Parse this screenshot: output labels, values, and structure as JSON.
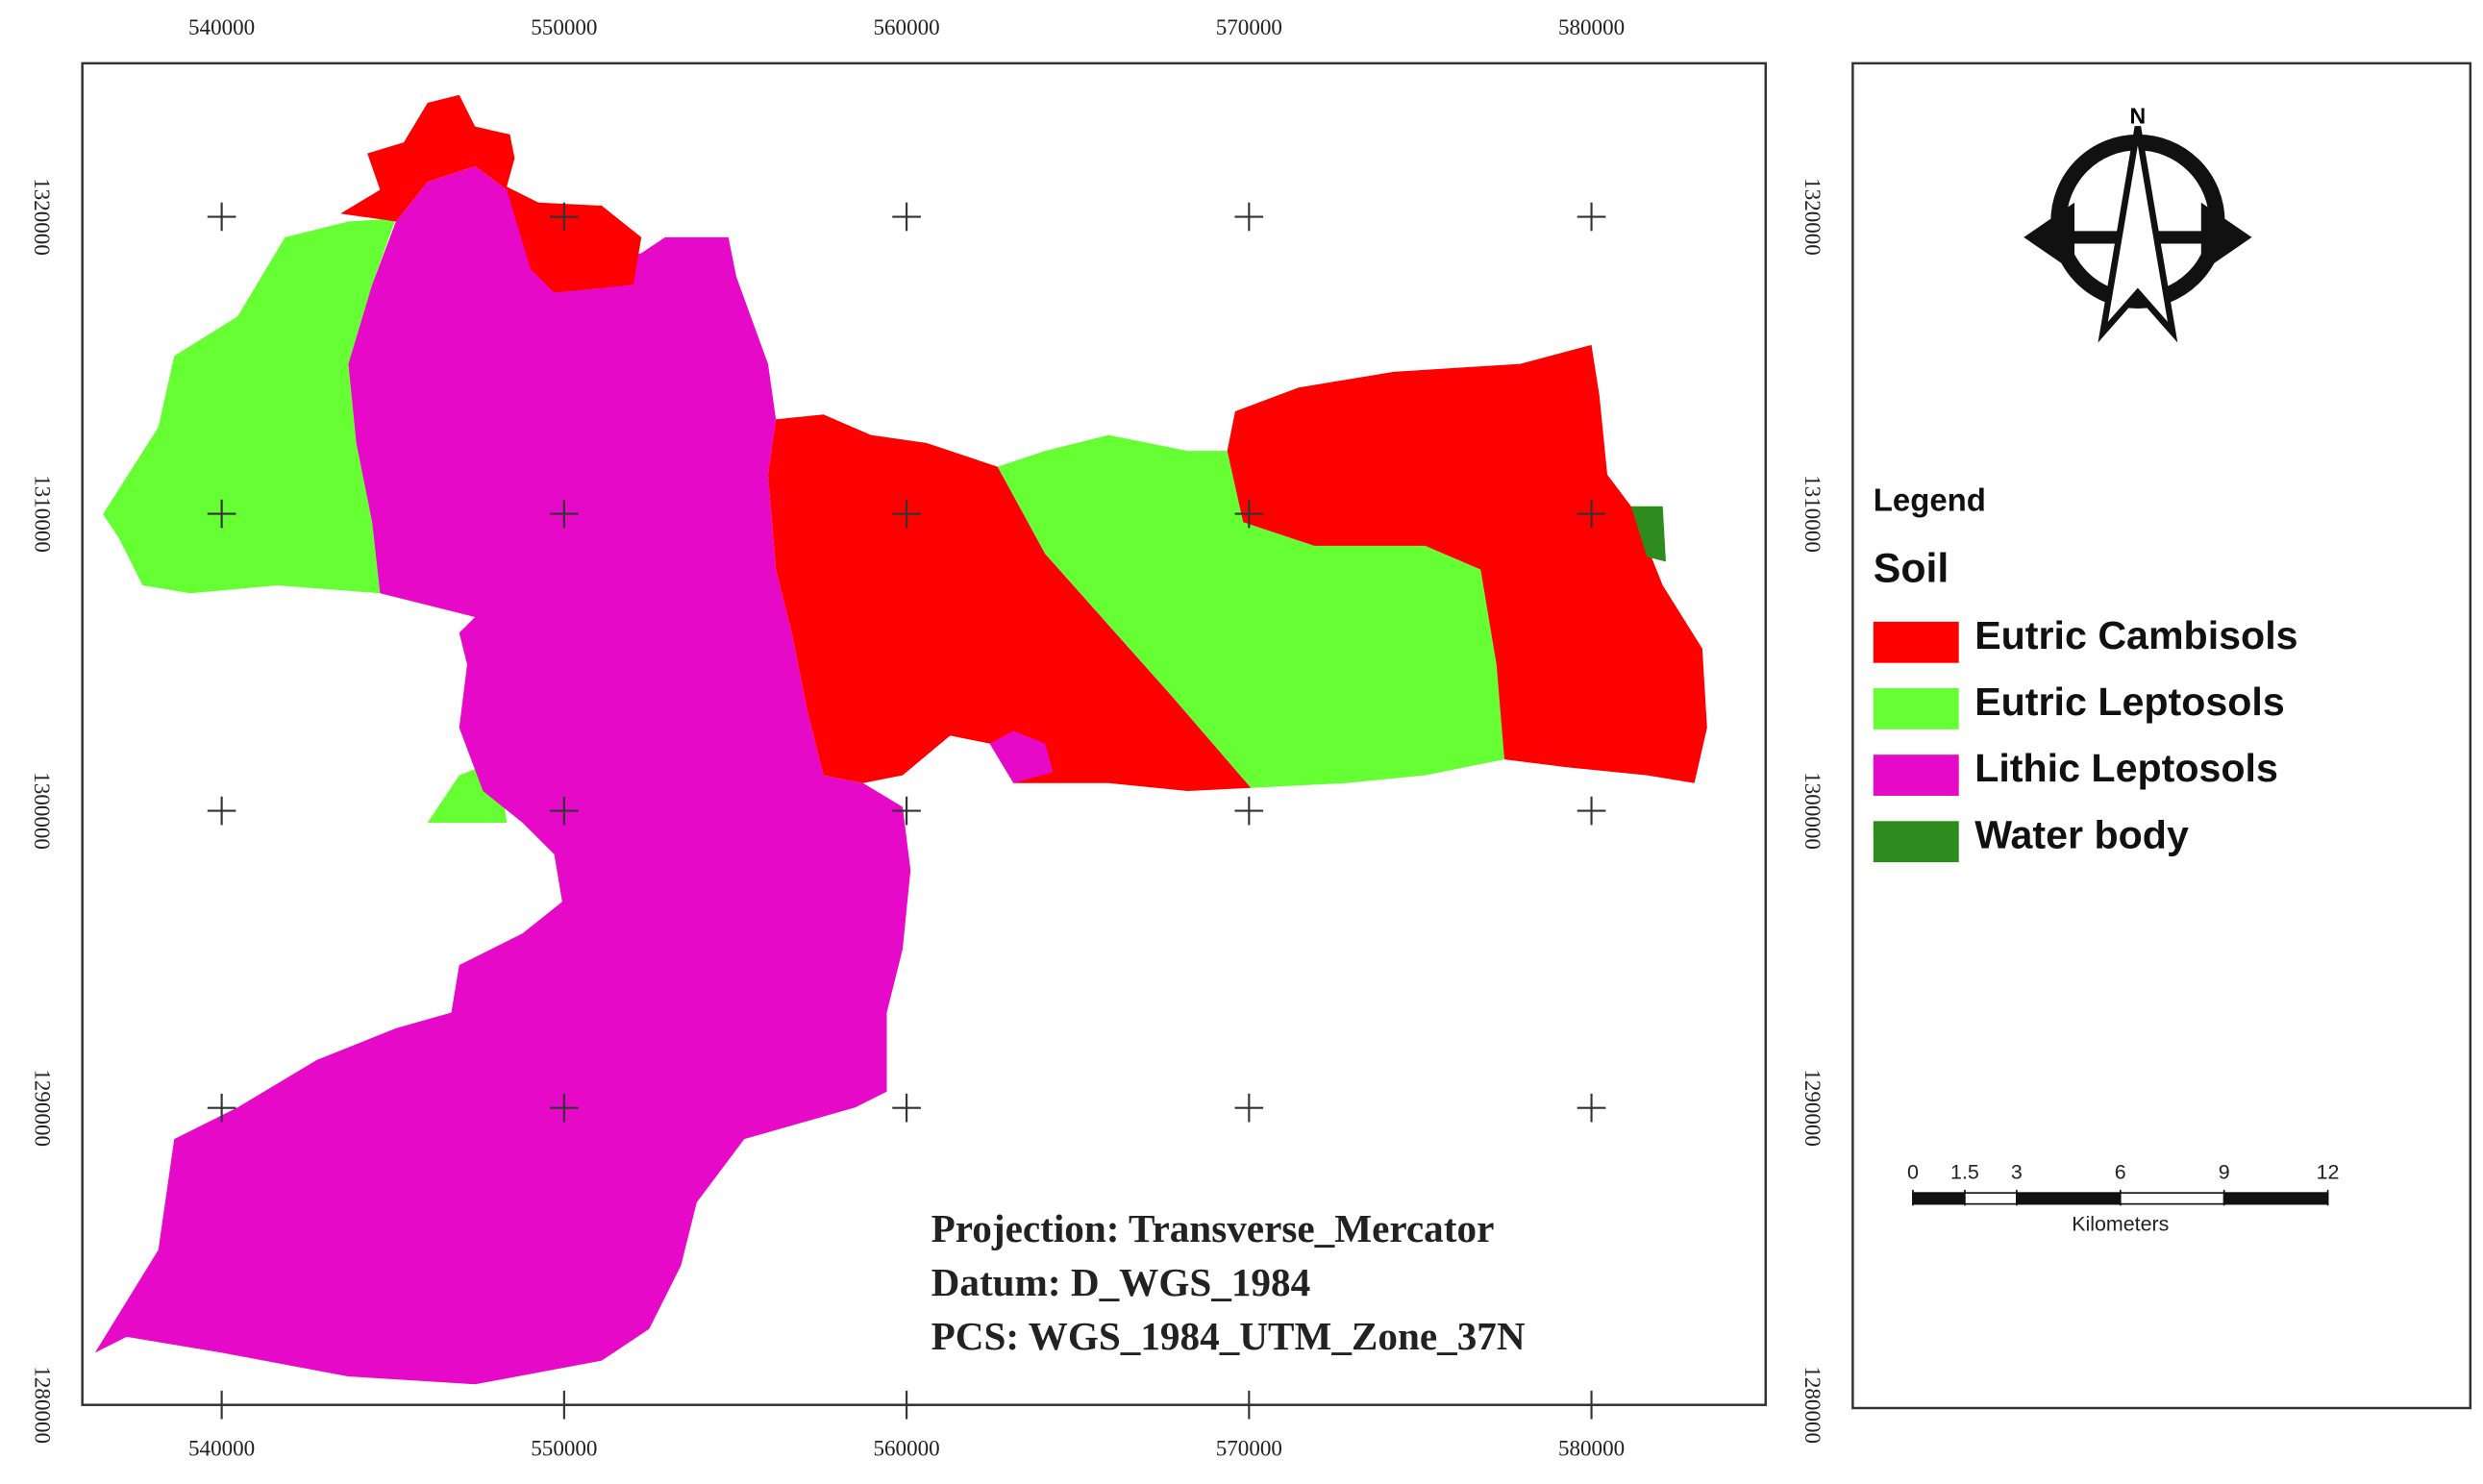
{
  "map": {
    "x_ticks": [
      540000,
      550000,
      560000,
      570000,
      580000
    ],
    "y_ticks": [
      1320000,
      1310000,
      1300000,
      1290000,
      1280000
    ],
    "legend": {
      "title": "Legend",
      "subtitle": "Soil",
      "items": [
        {
          "label": "Eutric Cambisols",
          "color": "#ff0000"
        },
        {
          "label": "Eutric Leptosols",
          "color": "#66ff33"
        },
        {
          "label": "Lithic Leptosols",
          "color": "#e60ac8"
        },
        {
          "label": "Water body",
          "color": "#2e8b1e"
        }
      ]
    },
    "projection": [
      "Projection: Transverse_Mercator",
      "Datum: D_WGS_1984",
      "PCS: WGS_1984_UTM_Zone_37N"
    ],
    "scale_bar": {
      "ticks": [
        0,
        1.5,
        3,
        6,
        9,
        12
      ],
      "unit": "Kilometers"
    }
  }
}
